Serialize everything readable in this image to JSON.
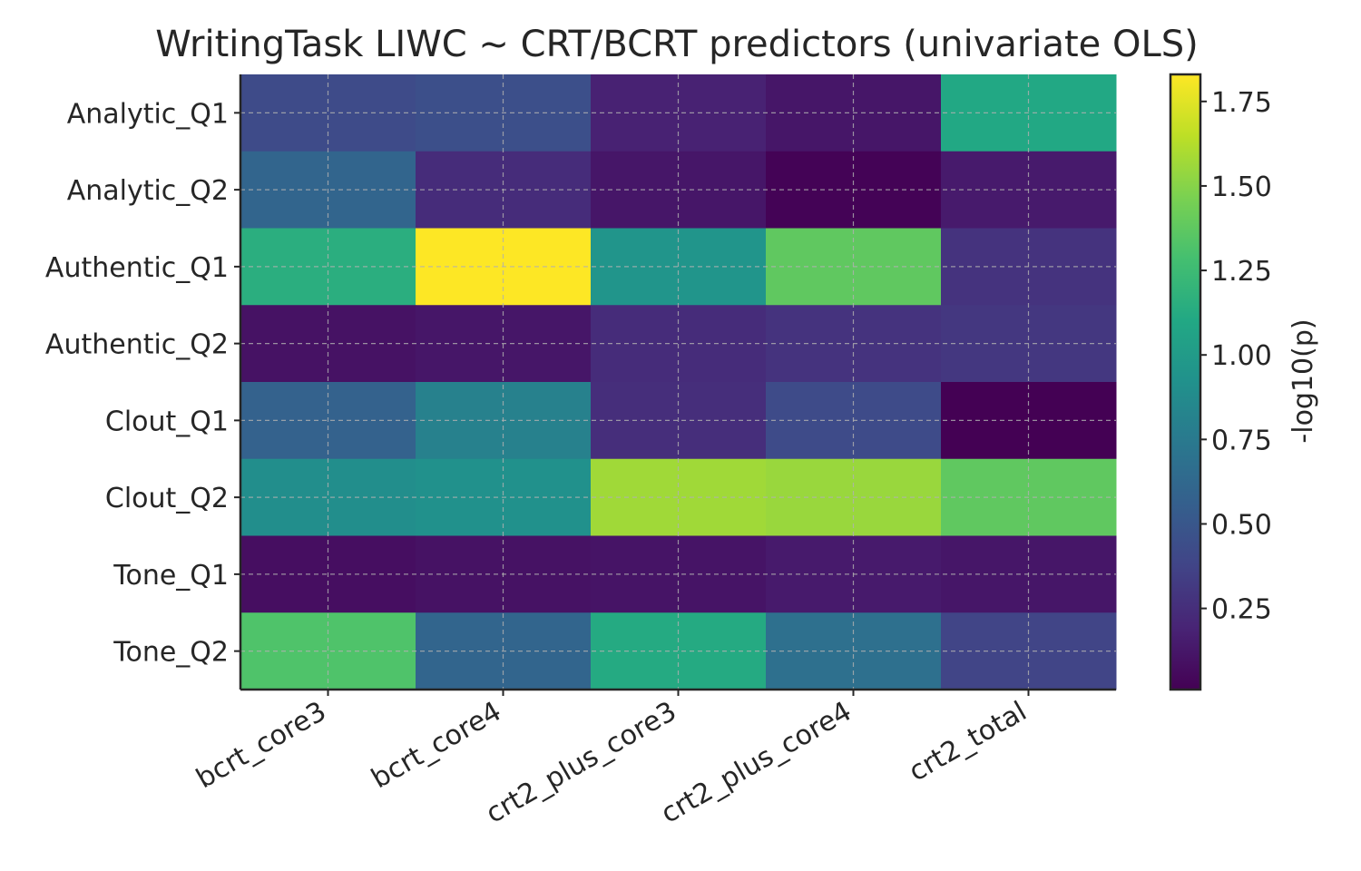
{
  "chart_data": {
    "type": "heatmap",
    "title": "WritingTask LIWC ~ CRT/BCRT predictors (univariate OLS)",
    "x_categories": [
      "bcrt_core3",
      "bcrt_core4",
      "crt2_plus_core3",
      "crt2_plus_core4",
      "crt2_total"
    ],
    "y_categories": [
      "Analytic_Q1",
      "Analytic_Q2",
      "Authentic_Q1",
      "Authentic_Q2",
      "Clout_Q1",
      "Clout_Q2",
      "Tone_Q1",
      "Tone_Q2"
    ],
    "values": [
      [
        0.42,
        0.45,
        0.18,
        0.12,
        1.1
      ],
      [
        0.6,
        0.24,
        0.12,
        0.02,
        0.14
      ],
      [
        1.15,
        1.83,
        0.95,
        1.38,
        0.28
      ],
      [
        0.1,
        0.12,
        0.24,
        0.28,
        0.3
      ],
      [
        0.58,
        0.8,
        0.25,
        0.42,
        0.01
      ],
      [
        0.9,
        0.92,
        1.57,
        1.55,
        1.38
      ],
      [
        0.08,
        0.1,
        0.11,
        0.14,
        0.12
      ],
      [
        1.32,
        0.6,
        1.12,
        0.68,
        0.38
      ]
    ],
    "colormap": "viridis",
    "vmin": 0.01,
    "vmax": 1.83,
    "colorbar_label": "-log10(p)",
    "colorbar_ticks": [
      0.25,
      0.5,
      0.75,
      1.0,
      1.25,
      1.5,
      1.75
    ],
    "grid": true,
    "x_tick_rotation": "30deg"
  }
}
